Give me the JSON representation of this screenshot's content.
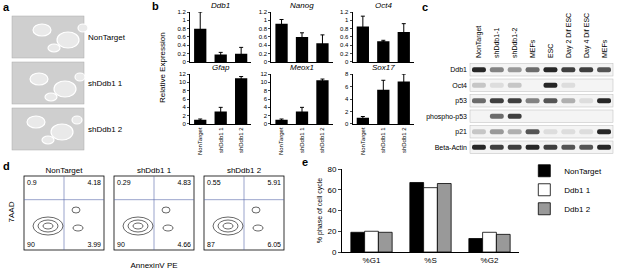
{
  "chart_data": [
    {
      "type": "bar",
      "title": "Ddb1",
      "categories": [
        "NonTarget",
        "shDdb1 1",
        "shDdb1 2"
      ],
      "values": [
        0.8,
        0.18,
        0.2
      ],
      "errors": [
        0.4,
        0.05,
        0.15
      ],
      "color": "#000000",
      "ylim": [
        0,
        1.2
      ],
      "yticks": [
        0,
        0.2,
        0.4,
        0.6,
        0.8,
        1,
        1.2
      ],
      "tick_labels": "y"
    },
    {
      "type": "bar",
      "title": "Nanog",
      "categories": [
        "NonTarget",
        "shDdb1 1",
        "shDdb1 2"
      ],
      "values": [
        0.92,
        0.6,
        0.45
      ],
      "errors": [
        0.1,
        0.1,
        0.2
      ],
      "color": "#000000",
      "ylim": [
        0,
        1.2
      ],
      "yticks": [
        0,
        0.2,
        0.4,
        0.6,
        0.8,
        1,
        1.2
      ],
      "tick_labels": "y"
    },
    {
      "type": "bar",
      "title": "Oct4",
      "categories": [
        "NonTarget",
        "shDdb1 1",
        "shDdb1 2"
      ],
      "values": [
        0.85,
        0.5,
        0.72
      ],
      "errors": [
        0.25,
        0.02,
        0.2
      ],
      "color": "#000000",
      "ylim": [
        0,
        1.2
      ],
      "yticks": [
        0,
        0.2,
        0.4,
        0.6,
        0.8,
        1,
        1.2
      ],
      "tick_labels": "y"
    },
    {
      "type": "bar",
      "title": "Gfap",
      "categories": [
        "NonTarget",
        "shDdb1 1",
        "shDdb1 2"
      ],
      "values": [
        1,
        3,
        11
      ],
      "errors": [
        0.2,
        1,
        0.4
      ],
      "color": "#000000",
      "ylim": [
        0,
        12
      ],
      "yticks": [
        0,
        2,
        4,
        6,
        8,
        10,
        12
      ]
    },
    {
      "type": "bar",
      "title": "Meox1",
      "categories": [
        "NonTarget",
        "shDdb1 1",
        "shDdb1 2"
      ],
      "values": [
        1,
        3,
        10.5
      ],
      "errors": [
        0.2,
        1,
        0.3
      ],
      "color": "#000000",
      "ylim": [
        0,
        12
      ],
      "yticks": [
        0,
        2,
        4,
        6,
        8,
        10,
        12
      ]
    },
    {
      "type": "bar",
      "title": "Sox17",
      "categories": [
        "NonTarget",
        "shDdb1 1",
        "shDdb1 2"
      ],
      "values": [
        1,
        5.5,
        6.8
      ],
      "errors": [
        0.2,
        1.5,
        1.2
      ],
      "color": "#000000",
      "ylim": [
        0,
        8
      ],
      "yticks": [
        0,
        2,
        4,
        6,
        8
      ]
    },
    {
      "type": "bar",
      "y_label": "% phase of cell cycle",
      "categories": [
        "%G1",
        "%S",
        "%G2"
      ],
      "series": [
        {
          "name": "NonTarget",
          "color": "#000000",
          "values": [
            19,
            67,
            13
          ]
        },
        {
          "name": "Ddb1 1",
          "color": "#ffffff",
          "values": [
            20,
            62,
            19
          ]
        },
        {
          "name": "Ddb1 2",
          "color": "#999999",
          "values": [
            19,
            66,
            17
          ]
        }
      ],
      "ylim": [
        0,
        80
      ],
      "yticks": [
        0,
        20,
        40,
        60,
        80
      ],
      "legend": "right"
    }
  ],
  "figure": {
    "a": {
      "letter": "a",
      "labels": [
        "NonTarget",
        "shDdb1 1",
        "shDdb1 2"
      ]
    },
    "b": {
      "letter": "b",
      "y_label": "Relative Expression"
    },
    "c": {
      "letter": "c",
      "lanes": [
        "NonTarget",
        "shDdb1-1",
        "shDdb1-2",
        "MEFs",
        "ESC",
        "Day 2 Dif ESC",
        "Day 4 Dif ESC",
        "MEFs"
      ],
      "rows": [
        {
          "label": "Ddb1",
          "bands": [
            0.9,
            0.5,
            0.4,
            0.6,
            0.9,
            0.8,
            0.8,
            0.7
          ]
        },
        {
          "label": "Oct4",
          "bands": [
            0.2,
            0.1,
            0.2,
            0,
            0.9,
            0.1,
            0,
            0
          ]
        },
        {
          "label": "p53",
          "bands": [
            0.6,
            0.8,
            0.8,
            0.5,
            0.7,
            0.3,
            0.1,
            0.9
          ]
        },
        {
          "label": "phospho-p53",
          "bands": [
            0,
            0.6,
            0.8,
            0,
            0,
            0,
            0,
            0
          ]
        },
        {
          "label": "p21",
          "bands": [
            0.2,
            0.4,
            0.3,
            0.7,
            0.1,
            0.1,
            0.1,
            0.9
          ]
        },
        {
          "label": "Beta-Actin",
          "bands": [
            0.9,
            0.8,
            0.8,
            0.9,
            0.8,
            0.7,
            0.7,
            0.9
          ]
        }
      ]
    },
    "d": {
      "letter": "d",
      "x_label": "AnnexinV PE",
      "y_label": "7AAD",
      "plots": [
        {
          "title": "NonTarget",
          "quadrants": {
            "upper_left": 0.9,
            "upper_right": 4.18,
            "lower_left": 90,
            "lower_right": 3.99
          }
        },
        {
          "title": "shDdb1 1",
          "quadrants": {
            "upper_left": 0.29,
            "upper_right": 4.83,
            "lower_left": 90,
            "lower_right": 4.66
          }
        },
        {
          "title": "shDdb1 2",
          "quadrants": {
            "upper_left": 0.55,
            "upper_right": 5.91,
            "lower_left": 87,
            "lower_right": 6.05
          }
        }
      ]
    },
    "e": {
      "letter": "e"
    }
  }
}
